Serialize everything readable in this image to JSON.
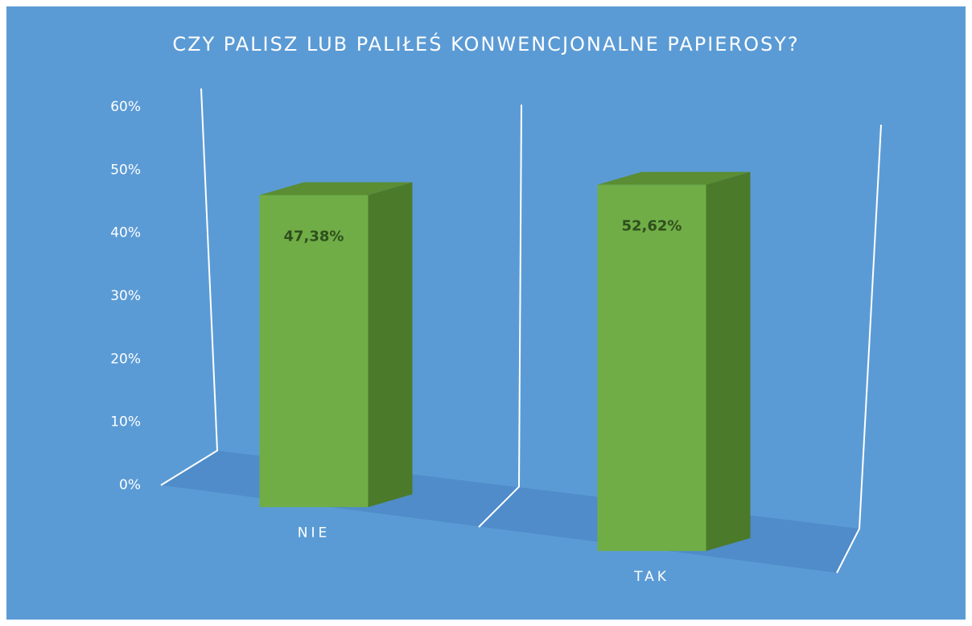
{
  "chart_data": {
    "type": "bar3d",
    "title": "CZY PALISZ LUB PALIŁEŚ KONWENCJONALNE PAPIEROSY?",
    "categories": [
      "NIE",
      "TAK"
    ],
    "values": [
      47.38,
      52.62
    ],
    "value_labels": [
      "47,38%",
      "52,62%"
    ],
    "color": "#70ad47",
    "ylim": [
      0,
      60
    ],
    "yticks": [
      {
        "value": 0,
        "label": "0%"
      },
      {
        "value": 10,
        "label": "10%"
      },
      {
        "value": 20,
        "label": "20%"
      },
      {
        "value": 30,
        "label": "30%"
      },
      {
        "value": 40,
        "label": "40%"
      },
      {
        "value": 50,
        "label": "50%"
      },
      {
        "value": 60,
        "label": "60%"
      }
    ]
  }
}
